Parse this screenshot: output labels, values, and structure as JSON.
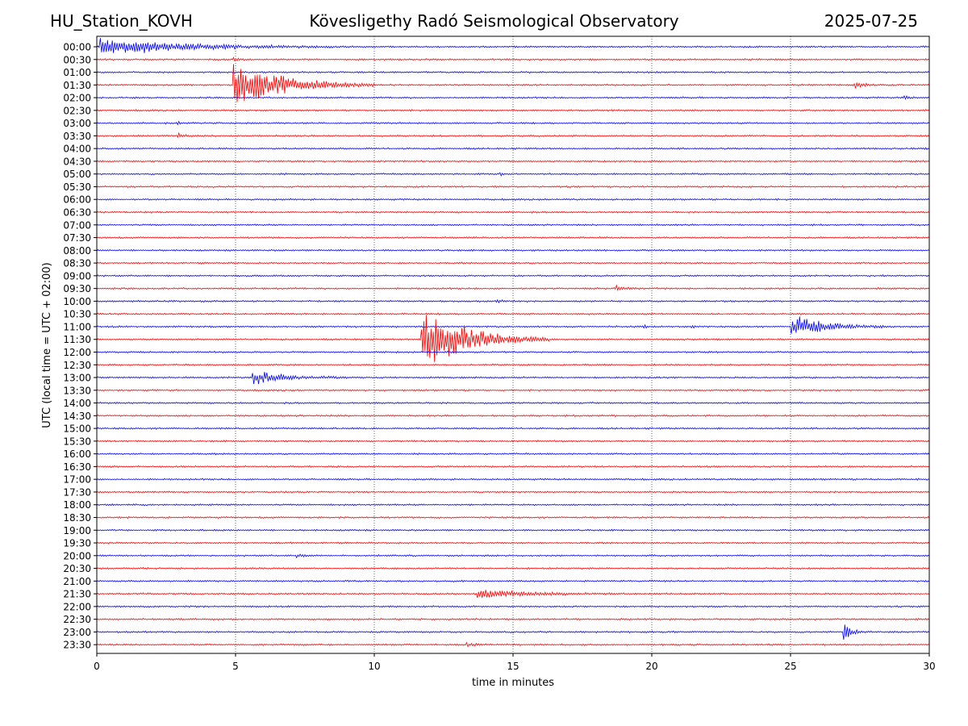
{
  "header": {
    "station": "HU_Station_KOVH",
    "title": "Kövesligethy Radó Seismological Observatory",
    "date": "2025-07-25"
  },
  "chart_data": {
    "type": "line",
    "title": "Kövesligethy Radó Seismological Observatory",
    "xlabel": "time in minutes",
    "ylabel": "UTC (local time = UTC + 02:00)",
    "xlim": [
      0,
      30
    ],
    "x_ticks": [
      "0",
      "5",
      "10",
      "15",
      "20",
      "25",
      "30"
    ],
    "grid": "vertical dotted at every 5 minutes",
    "colors": {
      "even_rows": "#0000ff",
      "odd_rows": "#ff0000"
    },
    "row_labels": [
      "00:00",
      "00:30",
      "01:00",
      "01:30",
      "02:00",
      "02:30",
      "03:00",
      "03:30",
      "04:00",
      "04:30",
      "05:00",
      "05:30",
      "06:00",
      "06:30",
      "07:00",
      "07:30",
      "08:00",
      "08:30",
      "09:00",
      "09:30",
      "10:00",
      "10:30",
      "11:00",
      "11:30",
      "12:00",
      "12:30",
      "13:00",
      "13:30",
      "14:00",
      "14:30",
      "15:00",
      "15:30",
      "16:00",
      "16:30",
      "17:00",
      "17:30",
      "18:00",
      "18:30",
      "19:00",
      "19:30",
      "20:00",
      "20:30",
      "21:00",
      "21:30",
      "22:00",
      "22:30",
      "23:00",
      "23:30"
    ],
    "events": [
      {
        "row": "00:00",
        "start_min": 0.1,
        "end_min": 8.5,
        "amplitude": 0.9
      },
      {
        "row": "00:30",
        "start_min": 4.9,
        "end_min": 5.4,
        "amplitude": 0.2
      },
      {
        "row": "01:30",
        "start_min": 4.9,
        "end_min": 10.0,
        "amplitude": 2.3
      },
      {
        "row": "01:30",
        "start_min": 27.3,
        "end_min": 28.2,
        "amplitude": 0.3
      },
      {
        "row": "02:00",
        "start_min": 29.1,
        "end_min": 29.5,
        "amplitude": 0.3
      },
      {
        "row": "03:00",
        "start_min": 2.9,
        "end_min": 3.2,
        "amplitude": 0.15
      },
      {
        "row": "03:30",
        "start_min": 2.9,
        "end_min": 3.6,
        "amplitude": 0.3
      },
      {
        "row": "05:00",
        "start_min": 14.5,
        "end_min": 15.0,
        "amplitude": 0.15
      },
      {
        "row": "09:30",
        "start_min": 18.7,
        "end_min": 19.6,
        "amplitude": 0.3
      },
      {
        "row": "10:00",
        "start_min": 14.4,
        "end_min": 14.9,
        "amplitude": 0.2
      },
      {
        "row": "11:00",
        "start_min": 19.7,
        "end_min": 20.1,
        "amplitude": 0.2
      },
      {
        "row": "11:00",
        "start_min": 21.4,
        "end_min": 21.6,
        "amplitude": 0.6
      },
      {
        "row": "11:00",
        "start_min": 25.0,
        "end_min": 28.5,
        "amplitude": 1.2
      },
      {
        "row": "11:30",
        "start_min": 11.7,
        "end_min": 16.3,
        "amplitude": 3.3
      },
      {
        "row": "13:00",
        "start_min": 5.6,
        "end_min": 9.0,
        "amplitude": 0.7
      },
      {
        "row": "20:00",
        "start_min": 7.2,
        "end_min": 7.8,
        "amplitude": 0.2
      },
      {
        "row": "21:30",
        "start_min": 13.7,
        "end_min": 19.0,
        "amplitude": 0.45
      },
      {
        "row": "23:00",
        "start_min": 26.9,
        "end_min": 27.9,
        "amplitude": 0.9
      },
      {
        "row": "23:30",
        "start_min": 13.3,
        "end_min": 14.4,
        "amplitude": 0.2
      }
    ]
  }
}
